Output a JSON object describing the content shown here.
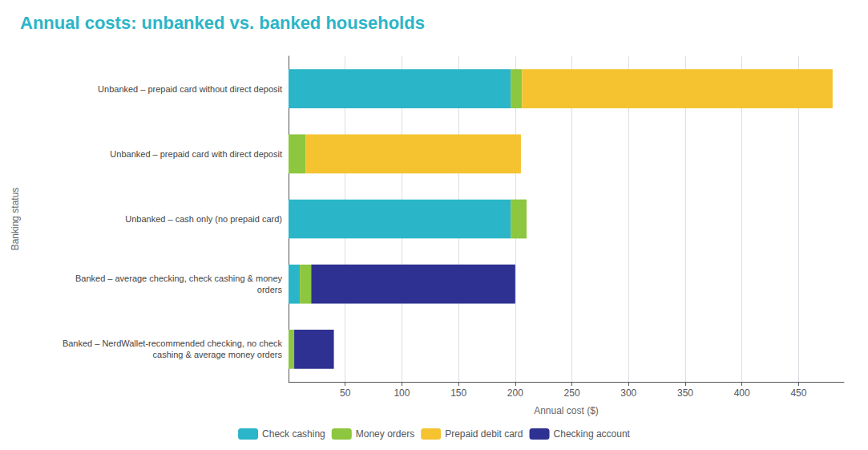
{
  "chart_data": {
    "type": "bar",
    "orientation": "horizontal",
    "stacked": true,
    "title": "Annual costs: unbanked vs. banked households",
    "xlabel": "Annual cost ($)",
    "ylabel": "Banking status",
    "categories": [
      "Unbanked – prepaid card without direct deposit",
      "Unbanked – prepaid card with direct deposit",
      "Unbanked – cash only (no prepaid card)",
      "Banked – average checking, check cashing & money\norders",
      "Banked – NerdWallet-recommended checking, no check\ncashing & average money orders"
    ],
    "series": [
      {
        "name": "Check cashing",
        "color": "#2ab5c8",
        "values": [
          196,
          0,
          196,
          10,
          0
        ]
      },
      {
        "name": "Money orders",
        "color": "#8dc63f",
        "values": [
          10,
          15,
          14,
          10,
          5
        ]
      },
      {
        "name": "Prepaid debit card",
        "color": "#f5c330",
        "values": [
          274,
          190,
          0,
          0,
          0
        ]
      },
      {
        "name": "Checking account",
        "color": "#2e3192",
        "values": [
          0,
          0,
          0,
          180,
          35
        ]
      }
    ],
    "xlim": [
      0,
      490
    ],
    "xticks": [
      50,
      100,
      150,
      200,
      250,
      300,
      350,
      400,
      450
    ],
    "grid": true,
    "legend": "bottom"
  }
}
